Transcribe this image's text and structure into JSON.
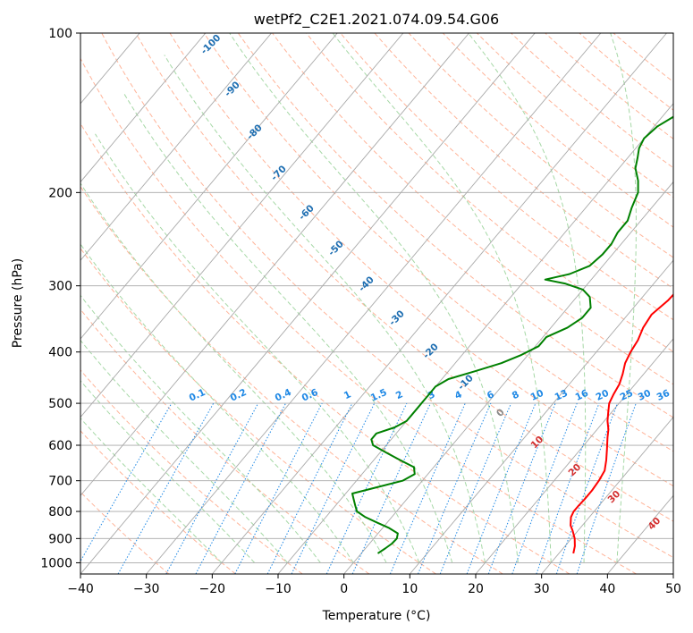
{
  "chart_data": {
    "type": "line",
    "title": "wetPf2_C2E1.2021.074.09.54.G06",
    "xlabel": "Temperature (°C)",
    "ylabel": "Pressure (hPa)",
    "xlim": [
      -40,
      50
    ],
    "ylim": [
      1050,
      100
    ],
    "x_ticks": [
      -40,
      -30,
      -20,
      -10,
      0,
      10,
      20,
      30,
      40,
      50
    ],
    "y_ticks": [
      100,
      200,
      300,
      400,
      500,
      600,
      700,
      800,
      900,
      1000
    ],
    "grid": true,
    "skew": "skew-T log-P",
    "colors": {
      "temperature": "#ff0000",
      "dewpoint": "#008000",
      "isotherm": "#a9a9a9",
      "dry_adiabat": "#ffb499",
      "moist_adiabat": "#a6d8a6",
      "mixing_ratio": "#1e88e5",
      "dry_label": "#d32f2f",
      "isotherm_label": "#1f6fb2",
      "zero_label": "#888888"
    },
    "series": [
      {
        "name": "Temperature",
        "pressure": [
          960,
          930,
          900,
          870,
          850,
          820,
          800,
          780,
          760,
          730,
          700,
          670,
          640,
          610,
          580,
          560,
          540,
          520,
          500,
          480,
          460,
          440,
          420,
          400,
          380,
          360,
          340,
          320,
          300,
          280,
          260,
          240,
          220,
          200,
          185,
          170,
          160,
          150,
          140,
          130,
          120,
          110,
          100
        ],
        "values": [
          32.2,
          31.5,
          30.5,
          29.2,
          28.2,
          27.2,
          26.9,
          26.9,
          27.0,
          27.0,
          26.8,
          26.4,
          25.3,
          24.0,
          22.6,
          21.7,
          20.5,
          19.5,
          18.5,
          18.0,
          17.6,
          16.8,
          15.8,
          15.2,
          14.8,
          14.0,
          13.6,
          14.3,
          14.5,
          13.5,
          11.8,
          9.9,
          8.2,
          6.6,
          5.5,
          5.0,
          4.8,
          4.6,
          4.3,
          4.0,
          3.2,
          2.4,
          1.5
        ]
      },
      {
        "name": "Dewpoint",
        "pressure": [
          960,
          940,
          920,
          900,
          880,
          860,
          840,
          820,
          800,
          780,
          760,
          740,
          720,
          700,
          680,
          660,
          640,
          620,
          600,
          585,
          570,
          555,
          540,
          525,
          510,
          495,
          480,
          465,
          450,
          435,
          420,
          405,
          390,
          375,
          360,
          345,
          330,
          315,
          305,
          297,
          292,
          285,
          275,
          262,
          250,
          238,
          226,
          214,
          200,
          190,
          180,
          172,
          165,
          158,
          150,
          140,
          130,
          120,
          110,
          100
        ],
        "values": [
          2.5,
          3.0,
          3.4,
          3.5,
          3.0,
          1.0,
          -1.5,
          -4.0,
          -6.0,
          -7.0,
          -8.0,
          -9.0,
          -6.0,
          -3.0,
          -2.0,
          -3.0,
          -6.0,
          -9.0,
          -12.0,
          -13.0,
          -13.0,
          -11.0,
          -10.0,
          -10.0,
          -10.0,
          -10.0,
          -10.0,
          -10.0,
          -9.0,
          -6.0,
          -3.0,
          -1.0,
          0.5,
          0.5,
          2.5,
          3.5,
          3.5,
          2.0,
          0.0,
          -3.5,
          -7.0,
          -4.0,
          -2.0,
          -1.5,
          -1.5,
          -2.0,
          -2.0,
          -3.0,
          -4.0,
          -5.5,
          -7.5,
          -8.5,
          -9.5,
          -10.0,
          -9.5,
          -7.5,
          -5.0,
          -3.0,
          -1.0,
          0.5
        ]
      }
    ],
    "isotherm_labels": [
      "-100",
      "-90",
      "-80",
      "-70",
      "-60",
      "-50",
      "-40",
      "-30",
      "-20",
      "-10",
      "0",
      "10",
      "20",
      "30",
      "40"
    ],
    "mixing_ratio_labels": [
      "0.1",
      "0.2",
      "0.4",
      "0.6",
      "1",
      "1.5",
      "2",
      "3",
      "4",
      "6",
      "8",
      "10",
      "13",
      "16",
      "20",
      "25",
      "30",
      "36"
    ]
  }
}
